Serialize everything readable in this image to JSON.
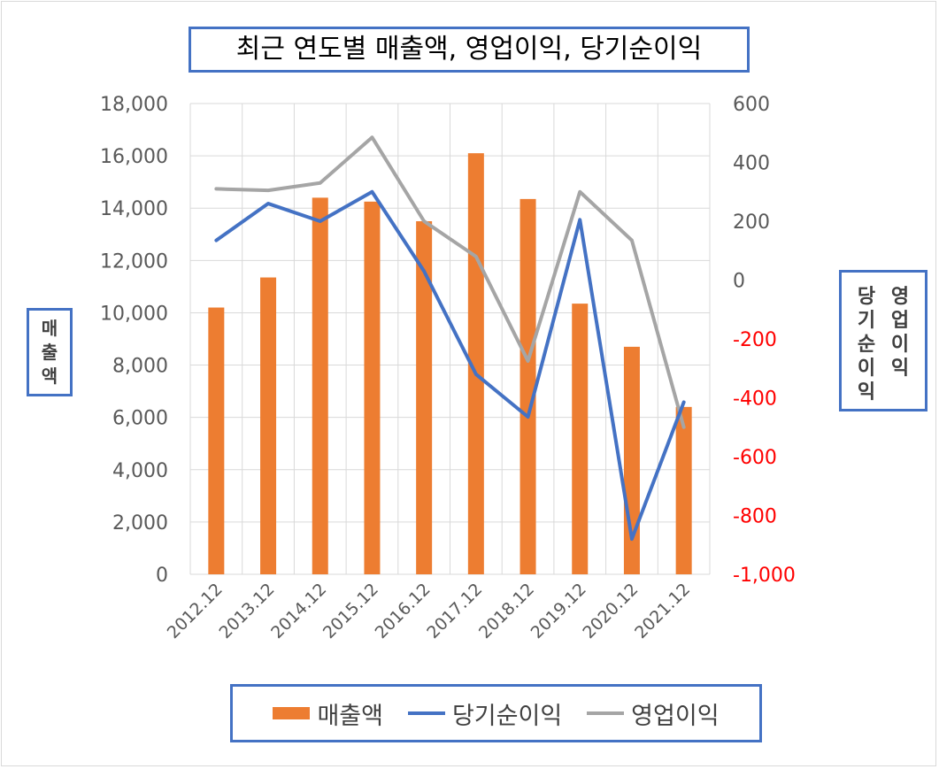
{
  "chart_data": {
    "type": "bar+line",
    "title": "최근 연도별 매출액, 영업이익, 당기순이익",
    "categories": [
      "2012.12",
      "2013.12",
      "2014.12",
      "2015.12",
      "2016.12",
      "2017.12",
      "2018.12",
      "2019.12",
      "2020.12",
      "2021.12"
    ],
    "series": [
      {
        "name": "매출액",
        "type": "bar",
        "axis": "left",
        "color": "#ed7d31",
        "values": [
          10200,
          11350,
          14400,
          14250,
          13500,
          16100,
          14350,
          10350,
          8700,
          6400
        ]
      },
      {
        "name": "당기순이익",
        "type": "line",
        "axis": "right",
        "color": "#4472c4",
        "values": [
          135,
          260,
          200,
          300,
          30,
          -320,
          -465,
          205,
          -880,
          -415
        ]
      },
      {
        "name": "영업이익",
        "type": "line",
        "axis": "right",
        "color": "#a5a5a5",
        "values": [
          310,
          305,
          330,
          485,
          200,
          80,
          -275,
          300,
          135,
          -500
        ]
      }
    ],
    "ylabel_left": "매출액",
    "ylabel_right_lines": [
      "당기순이익",
      "영업이익"
    ],
    "ylim_left": [
      0,
      18000
    ],
    "yticks_left": [
      "0",
      "2,000",
      "4,000",
      "6,000",
      "8,000",
      "10,000",
      "12,000",
      "14,000",
      "16,000",
      "18,000"
    ],
    "ylim_right": [
      -1000,
      600
    ],
    "yticks_right": [
      "-1,000",
      "-800",
      "-600",
      "-400",
      "-200",
      "0",
      "200",
      "400",
      "600"
    ],
    "negative_tick_color": "#ff0000",
    "tick_color": "#595959",
    "grid": true,
    "legend_position": "bottom"
  }
}
